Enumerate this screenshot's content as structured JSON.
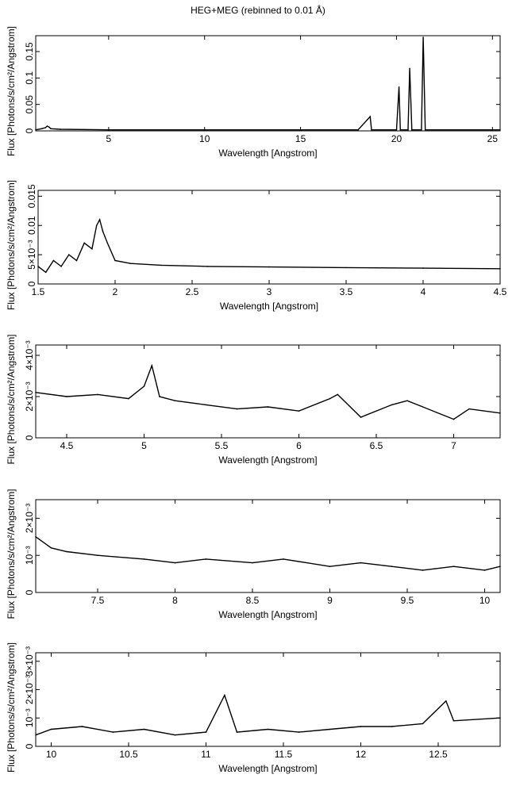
{
  "title": "HEG+MEG (rebinned to 0.01 Å)",
  "chart_data": [
    {
      "type": "line",
      "title": "HEG+MEG (rebinned to 0.01 Å)",
      "xlabel": "Wavelength [Angstrom]",
      "ylabel": "Flux [Photons/s/cm²/Angstrom]",
      "xlim": [
        1.2,
        25.4
      ],
      "ylim": [
        0,
        0.18
      ],
      "xticks": [
        {
          "v": 5,
          "label": "5"
        },
        {
          "v": 10,
          "label": "10"
        },
        {
          "v": 15,
          "label": "15"
        },
        {
          "v": 20,
          "label": "20"
        },
        {
          "v": 25,
          "label": "25"
        }
      ],
      "yticks": [
        {
          "v": 0,
          "label": "0"
        },
        {
          "v": 0.05,
          "label": "0.05"
        },
        {
          "v": 0.1,
          "label": "0.1"
        },
        {
          "v": 0.15,
          "label": "0.15"
        }
      ],
      "series": [
        {
          "x": [
            1.2,
            1.5,
            1.7,
            1.8,
            1.9,
            2.0,
            2.5,
            5.0,
            10.0,
            15.0,
            18.0,
            18.63,
            18.7,
            20.0,
            20.13,
            20.2,
            20.6,
            20.69,
            20.8,
            21.3,
            21.39,
            21.5,
            25.4
          ],
          "y": [
            0.002,
            0.004,
            0.006,
            0.009,
            0.007,
            0.004,
            0.003,
            0.002,
            0.002,
            0.002,
            0.002,
            0.027,
            0.002,
            0.002,
            0.083,
            0.002,
            0.002,
            0.118,
            0.002,
            0.002,
            0.177,
            0.002,
            0.002
          ]
        }
      ]
    },
    {
      "type": "line",
      "xlabel": "Wavelength [Angstrom]",
      "ylabel": "Flux [Photons/s/cm²/Angstrom]",
      "xlim": [
        1.5,
        4.5
      ],
      "ylim": [
        0,
        0.016
      ],
      "xticks": [
        {
          "v": 1.5,
          "label": "1.5"
        },
        {
          "v": 2,
          "label": "2"
        },
        {
          "v": 2.5,
          "label": "2.5"
        },
        {
          "v": 3,
          "label": "3"
        },
        {
          "v": 3.5,
          "label": "3.5"
        },
        {
          "v": 4,
          "label": "4"
        },
        {
          "v": 4.5,
          "label": "4.5"
        }
      ],
      "yticks": [
        {
          "v": 0,
          "label": "0"
        },
        {
          "v": 0.005,
          "label": "5×10⁻³"
        },
        {
          "v": 0.01,
          "label": "0.01"
        },
        {
          "v": 0.015,
          "label": "0.015"
        }
      ],
      "series": [
        {
          "x": [
            1.5,
            1.55,
            1.6,
            1.65,
            1.7,
            1.75,
            1.8,
            1.85,
            1.88,
            1.9,
            1.92,
            1.95,
            2.0,
            2.1,
            2.3,
            2.6,
            3.0,
            3.5,
            4.0,
            4.5
          ],
          "y": [
            0.003,
            0.002,
            0.004,
            0.003,
            0.005,
            0.004,
            0.007,
            0.006,
            0.01,
            0.011,
            0.009,
            0.007,
            0.004,
            0.0035,
            0.0032,
            0.003,
            0.0029,
            0.0028,
            0.0027,
            0.0026
          ]
        }
      ]
    },
    {
      "type": "line",
      "xlabel": "Wavelength [Angstrom]",
      "ylabel": "Flux [Photons/s/cm²/Angstrom]",
      "xlim": [
        4.3,
        7.3
      ],
      "ylim": [
        0,
        0.0045
      ],
      "xticks": [
        {
          "v": 4.5,
          "label": "4.5"
        },
        {
          "v": 5,
          "label": "5"
        },
        {
          "v": 5.5,
          "label": "5.5"
        },
        {
          "v": 6,
          "label": "6"
        },
        {
          "v": 6.5,
          "label": "6.5"
        },
        {
          "v": 7,
          "label": "7"
        }
      ],
      "yticks": [
        {
          "v": 0,
          "label": "0"
        },
        {
          "v": 0.002,
          "label": "2×10⁻³"
        },
        {
          "v": 0.004,
          "label": "4×10⁻³"
        }
      ],
      "series": [
        {
          "x": [
            4.3,
            4.5,
            4.7,
            4.9,
            5.0,
            5.05,
            5.1,
            5.2,
            5.4,
            5.6,
            5.8,
            6.0,
            6.2,
            6.25,
            6.4,
            6.6,
            6.7,
            6.8,
            7.0,
            7.1,
            7.3
          ],
          "y": [
            0.0022,
            0.002,
            0.0021,
            0.0019,
            0.0025,
            0.0035,
            0.002,
            0.0018,
            0.0016,
            0.0014,
            0.0015,
            0.0013,
            0.0019,
            0.0021,
            0.001,
            0.0016,
            0.0018,
            0.0015,
            0.0009,
            0.0014,
            0.0012
          ]
        }
      ]
    },
    {
      "type": "line",
      "xlabel": "Wavelength [Angstrom]",
      "ylabel": "Flux [Photons/s/cm²/Angstrom]",
      "xlim": [
        7.1,
        10.1
      ],
      "ylim": [
        0,
        0.0025
      ],
      "xticks": [
        {
          "v": 7.5,
          "label": "7.5"
        },
        {
          "v": 8,
          "label": "8"
        },
        {
          "v": 8.5,
          "label": "8.5"
        },
        {
          "v": 9,
          "label": "9"
        },
        {
          "v": 9.5,
          "label": "9.5"
        },
        {
          "v": 10,
          "label": "10"
        }
      ],
      "yticks": [
        {
          "v": 0,
          "label": "0"
        },
        {
          "v": 0.001,
          "label": "10⁻³"
        },
        {
          "v": 0.002,
          "label": "2×10⁻³"
        }
      ],
      "series": [
        {
          "x": [
            7.1,
            7.2,
            7.3,
            7.5,
            7.8,
            8.0,
            8.2,
            8.5,
            8.7,
            9.0,
            9.2,
            9.4,
            9.6,
            9.8,
            10.0,
            10.1
          ],
          "y": [
            0.0015,
            0.0012,
            0.0011,
            0.001,
            0.0009,
            0.0008,
            0.0009,
            0.0008,
            0.0009,
            0.0007,
            0.0008,
            0.0007,
            0.0006,
            0.0007,
            0.0006,
            0.0007
          ]
        }
      ]
    },
    {
      "type": "line",
      "xlabel": "Wavelength [Angstrom]",
      "ylabel": "Flux [Photons/s/cm²/Angstrom]",
      "xlim": [
        9.9,
        12.9
      ],
      "ylim": [
        0,
        0.0033
      ],
      "xticks": [
        {
          "v": 10,
          "label": "10"
        },
        {
          "v": 10.5,
          "label": "10.5"
        },
        {
          "v": 11,
          "label": "11"
        },
        {
          "v": 11.5,
          "label": "11.5"
        },
        {
          "v": 12,
          "label": "12"
        },
        {
          "v": 12.5,
          "label": "12.5"
        }
      ],
      "yticks": [
        {
          "v": 0,
          "label": "0"
        },
        {
          "v": 0.001,
          "label": "10⁻³"
        },
        {
          "v": 0.002,
          "label": "2×10⁻³"
        },
        {
          "v": 0.003,
          "label": "3×10⁻³"
        }
      ],
      "series": [
        {
          "x": [
            9.9,
            10.0,
            10.2,
            10.4,
            10.6,
            10.8,
            11.0,
            11.12,
            11.2,
            11.4,
            11.6,
            11.8,
            12.0,
            12.2,
            12.4,
            12.55,
            12.6,
            12.9
          ],
          "y": [
            0.0004,
            0.0006,
            0.0007,
            0.0005,
            0.0006,
            0.0004,
            0.0005,
            0.0018,
            0.0005,
            0.0006,
            0.0005,
            0.0006,
            0.0007,
            0.0007,
            0.0008,
            0.0016,
            0.0009,
            0.001
          ]
        }
      ]
    }
  ]
}
